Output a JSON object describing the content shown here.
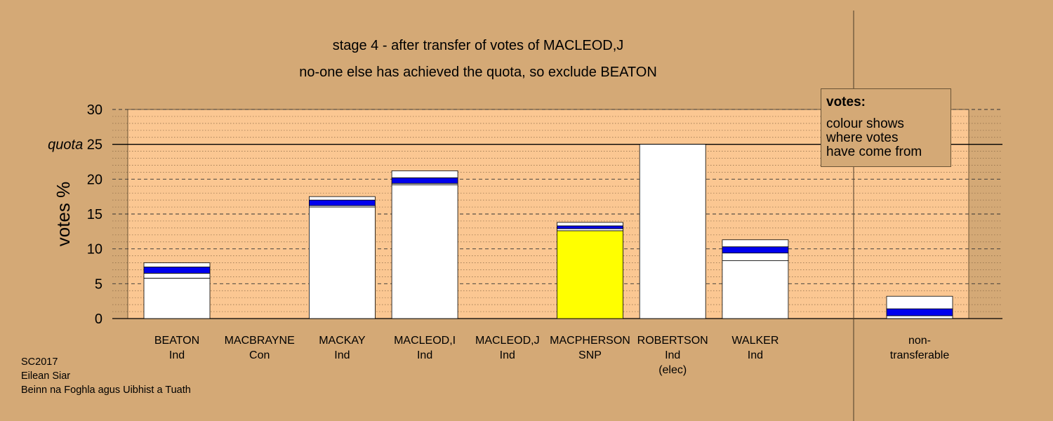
{
  "title": "stage 4 - after transfer of votes of MACLEOD,J",
  "subtitle": "no-one else has achieved the quota, so exclude BEATON",
  "legend": {
    "title": "votes:",
    "lines": [
      "colour shows",
      "where votes",
      "have come from"
    ]
  },
  "footer": [
    "SC2017",
    "Eilean Siar",
    "Beinn na Foghla agus Uibhist a Tuath"
  ],
  "colors": {
    "background": "#d4a976",
    "plot_area": "#fbc792",
    "bar_base": "#ffffff",
    "transfer_blue": "#0000ee",
    "snp_yellow": "#ffff00",
    "outline": "#000000"
  },
  "chart_data": {
    "type": "bar",
    "stacked": true,
    "title": "stage 4 - after transfer of votes of MACLEOD,J",
    "subtitle": "no-one else has achieved the quota, so exclude BEATON",
    "ylabel": "votes %",
    "ylim": [
      0,
      30
    ],
    "yticks": [
      0,
      5,
      10,
      15,
      20,
      25,
      30
    ],
    "quota": 25,
    "quota_label": "quota",
    "categories": [
      {
        "name": "BEATON",
        "party": "Ind",
        "note": ""
      },
      {
        "name": "MACBRAYNE",
        "party": "Con",
        "note": ""
      },
      {
        "name": "MACKAY",
        "party": "Ind",
        "note": ""
      },
      {
        "name": "MACLEOD,I",
        "party": "Ind",
        "note": ""
      },
      {
        "name": "MACLEOD,J",
        "party": "Ind",
        "note": ""
      },
      {
        "name": "MACPHERSON",
        "party": "SNP",
        "note": ""
      },
      {
        "name": "ROBERTSON",
        "party": "Ind",
        "note": "(elec)"
      },
      {
        "name": "WALKER",
        "party": "Ind",
        "note": ""
      }
    ],
    "bars": [
      {
        "segments": [
          {
            "value": 5.8,
            "color": "#ffffff"
          },
          {
            "value": 0.7,
            "color": "#ffffff"
          },
          {
            "value": 0.9,
            "color": "#0000ee"
          },
          {
            "value": 0.6,
            "color": "#ffffff"
          }
        ]
      },
      {
        "segments": []
      },
      {
        "segments": [
          {
            "value": 16.0,
            "color": "#ffffff"
          },
          {
            "value": 0.2,
            "color": "#ffffff"
          },
          {
            "value": 0.8,
            "color": "#0000ee"
          },
          {
            "value": 0.5,
            "color": "#ffffff"
          }
        ]
      },
      {
        "segments": [
          {
            "value": 19.2,
            "color": "#ffffff"
          },
          {
            "value": 0.2,
            "color": "#ffffff"
          },
          {
            "value": 0.8,
            "color": "#0000ee"
          },
          {
            "value": 1.0,
            "color": "#ffffff"
          }
        ]
      },
      {
        "segments": []
      },
      {
        "segments": [
          {
            "value": 12.6,
            "color": "#ffff00"
          },
          {
            "value": 0.3,
            "color": "#ffffff"
          },
          {
            "value": 0.4,
            "color": "#0000ee"
          },
          {
            "value": 0.5,
            "color": "#ffffff"
          }
        ]
      },
      {
        "segments": [
          {
            "value": 25.0,
            "color": "#ffffff"
          }
        ]
      },
      {
        "segments": [
          {
            "value": 8.3,
            "color": "#ffffff"
          },
          {
            "value": 1.1,
            "color": "#ffffff"
          },
          {
            "value": 0.9,
            "color": "#0000ee"
          },
          {
            "value": 1.0,
            "color": "#ffffff"
          }
        ]
      }
    ],
    "non_transferable": {
      "label": [
        "non-",
        "transferable"
      ],
      "segments": [
        {
          "value": 0.4,
          "color": "#ffffff"
        },
        {
          "value": 1.0,
          "color": "#0000ee"
        },
        {
          "value": 1.8,
          "color": "#ffffff"
        }
      ]
    },
    "grid": {
      "major": "dashed",
      "minor": "dotted"
    }
  }
}
